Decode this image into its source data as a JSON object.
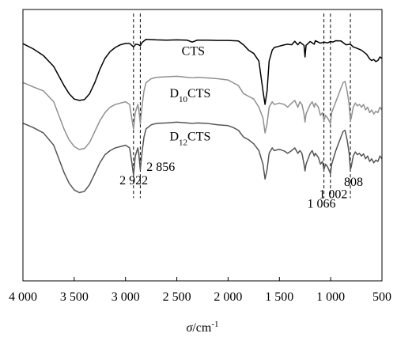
{
  "chart_data": {
    "type": "line",
    "xlabel_symbol": "σ",
    "xlabel_unit": "/cm",
    "xlabel_exp": "-1",
    "xlim": [
      4000,
      500
    ],
    "x_ticks": [
      {
        "value": 4000,
        "label": "4 000"
      },
      {
        "value": 3500,
        "label": "3 500"
      },
      {
        "value": 3000,
        "label": "3 000"
      },
      {
        "value": 2500,
        "label": "2 500"
      },
      {
        "value": 2000,
        "label": "2 000"
      },
      {
        "value": 1500,
        "label": "1 500"
      },
      {
        "value": 1000,
        "label": "1 000"
      },
      {
        "value": 500,
        "label": "500"
      }
    ],
    "series": [
      {
        "name": "CTS",
        "name_parts": {
          "pre": "CTS",
          "sub": "",
          "post": ""
        },
        "color": "#000000",
        "label_x": 2340,
        "label_y": 0.833,
        "points": [
          [
            4000,
            0.874
          ],
          [
            3900,
            0.855
          ],
          [
            3800,
            0.83
          ],
          [
            3700,
            0.79
          ],
          [
            3650,
            0.755
          ],
          [
            3600,
            0.72
          ],
          [
            3550,
            0.69
          ],
          [
            3500,
            0.67
          ],
          [
            3450,
            0.665
          ],
          [
            3400,
            0.668
          ],
          [
            3350,
            0.69
          ],
          [
            3300,
            0.73
          ],
          [
            3250,
            0.78
          ],
          [
            3200,
            0.82
          ],
          [
            3150,
            0.845
          ],
          [
            3100,
            0.86
          ],
          [
            3050,
            0.87
          ],
          [
            3000,
            0.875
          ],
          [
            2960,
            0.875
          ],
          [
            2922,
            0.862
          ],
          [
            2900,
            0.872
          ],
          [
            2870,
            0.87
          ],
          [
            2856,
            0.866
          ],
          [
            2840,
            0.878
          ],
          [
            2800,
            0.89
          ],
          [
            2700,
            0.888
          ],
          [
            2600,
            0.887
          ],
          [
            2500,
            0.888
          ],
          [
            2400,
            0.887
          ],
          [
            2350,
            0.88
          ],
          [
            2300,
            0.887
          ],
          [
            2200,
            0.887
          ],
          [
            2100,
            0.886
          ],
          [
            2000,
            0.886
          ],
          [
            1900,
            0.884
          ],
          [
            1850,
            0.87
          ],
          [
            1800,
            0.85
          ],
          [
            1750,
            0.838
          ],
          [
            1700,
            0.81
          ],
          [
            1660,
            0.7
          ],
          [
            1640,
            0.65
          ],
          [
            1620,
            0.7
          ],
          [
            1600,
            0.81
          ],
          [
            1570,
            0.85
          ],
          [
            1550,
            0.86
          ],
          [
            1500,
            0.865
          ],
          [
            1450,
            0.87
          ],
          [
            1420,
            0.872
          ],
          [
            1380,
            0.87
          ],
          [
            1350,
            0.883
          ],
          [
            1320,
            0.87
          ],
          [
            1300,
            0.88
          ],
          [
            1260,
            0.868
          ],
          [
            1250,
            0.825
          ],
          [
            1240,
            0.868
          ],
          [
            1200,
            0.882
          ],
          [
            1160,
            0.872
          ],
          [
            1150,
            0.885
          ],
          [
            1100,
            0.876
          ],
          [
            1066,
            0.88
          ],
          [
            1030,
            0.877
          ],
          [
            1002,
            0.882
          ],
          [
            980,
            0.88
          ],
          [
            950,
            0.885
          ],
          [
            900,
            0.884
          ],
          [
            850,
            0.87
          ],
          [
            808,
            0.872
          ],
          [
            780,
            0.862
          ],
          [
            750,
            0.858
          ],
          [
            700,
            0.85
          ],
          [
            650,
            0.835
          ],
          [
            620,
            0.818
          ],
          [
            600,
            0.812
          ],
          [
            580,
            0.816
          ],
          [
            560,
            0.808
          ],
          [
            540,
            0.812
          ],
          [
            520,
            0.825
          ],
          [
            500,
            0.82
          ]
        ]
      },
      {
        "name": "D10CTS",
        "name_parts": {
          "pre": "D",
          "sub": "10",
          "post": "CTS"
        },
        "color": "#909090",
        "label_x": 2370,
        "label_y": 0.676,
        "points": [
          [
            4000,
            0.731
          ],
          [
            3900,
            0.715
          ],
          [
            3800,
            0.7
          ],
          [
            3700,
            0.66
          ],
          [
            3650,
            0.61
          ],
          [
            3600,
            0.56
          ],
          [
            3550,
            0.52
          ],
          [
            3500,
            0.495
          ],
          [
            3450,
            0.484
          ],
          [
            3400,
            0.488
          ],
          [
            3350,
            0.51
          ],
          [
            3300,
            0.55
          ],
          [
            3250,
            0.59
          ],
          [
            3200,
            0.62
          ],
          [
            3150,
            0.64
          ],
          [
            3100,
            0.65
          ],
          [
            3050,
            0.655
          ],
          [
            3000,
            0.66
          ],
          [
            2960,
            0.65
          ],
          [
            2940,
            0.6
          ],
          [
            2922,
            0.56
          ],
          [
            2905,
            0.62
          ],
          [
            2880,
            0.65
          ],
          [
            2870,
            0.63
          ],
          [
            2856,
            0.58
          ],
          [
            2840,
            0.64
          ],
          [
            2820,
            0.7
          ],
          [
            2800,
            0.73
          ],
          [
            2750,
            0.745
          ],
          [
            2700,
            0.75
          ],
          [
            2600,
            0.752
          ],
          [
            2500,
            0.754
          ],
          [
            2400,
            0.75
          ],
          [
            2350,
            0.748
          ],
          [
            2300,
            0.75
          ],
          [
            2200,
            0.748
          ],
          [
            2100,
            0.745
          ],
          [
            2000,
            0.74
          ],
          [
            1950,
            0.73
          ],
          [
            1900,
            0.72
          ],
          [
            1850,
            0.69
          ],
          [
            1800,
            0.68
          ],
          [
            1750,
            0.67
          ],
          [
            1700,
            0.64
          ],
          [
            1660,
            0.6
          ],
          [
            1640,
            0.545
          ],
          [
            1620,
            0.58
          ],
          [
            1600,
            0.64
          ],
          [
            1570,
            0.66
          ],
          [
            1550,
            0.65
          ],
          [
            1500,
            0.655
          ],
          [
            1450,
            0.65
          ],
          [
            1420,
            0.64
          ],
          [
            1380,
            0.655
          ],
          [
            1350,
            0.665
          ],
          [
            1320,
            0.64
          ],
          [
            1300,
            0.66
          ],
          [
            1280,
            0.65
          ],
          [
            1260,
            0.615
          ],
          [
            1250,
            0.585
          ],
          [
            1240,
            0.615
          ],
          [
            1200,
            0.65
          ],
          [
            1180,
            0.66
          ],
          [
            1160,
            0.64
          ],
          [
            1150,
            0.655
          ],
          [
            1120,
            0.64
          ],
          [
            1100,
            0.61
          ],
          [
            1080,
            0.62
          ],
          [
            1066,
            0.59
          ],
          [
            1050,
            0.61
          ],
          [
            1030,
            0.6
          ],
          [
            1002,
            0.58
          ],
          [
            990,
            0.62
          ],
          [
            950,
            0.66
          ],
          [
            920,
            0.69
          ],
          [
            900,
            0.71
          ],
          [
            880,
            0.73
          ],
          [
            860,
            0.735
          ],
          [
            840,
            0.7
          ],
          [
            820,
            0.65
          ],
          [
            808,
            0.59
          ],
          [
            800,
            0.6
          ],
          [
            780,
            0.64
          ],
          [
            760,
            0.655
          ],
          [
            740,
            0.645
          ],
          [
            720,
            0.65
          ],
          [
            700,
            0.64
          ],
          [
            680,
            0.65
          ],
          [
            660,
            0.63
          ],
          [
            640,
            0.64
          ],
          [
            620,
            0.62
          ],
          [
            600,
            0.63
          ],
          [
            580,
            0.615
          ],
          [
            560,
            0.625
          ],
          [
            540,
            0.62
          ],
          [
            520,
            0.64
          ],
          [
            500,
            0.63
          ]
        ]
      },
      {
        "name": "D12CTS",
        "name_parts": {
          "pre": "D",
          "sub": "12",
          "post": "CTS"
        },
        "color": "#555555",
        "label_x": 2370,
        "label_y": 0.518,
        "points": [
          [
            4000,
            0.581
          ],
          [
            3900,
            0.565
          ],
          [
            3800,
            0.545
          ],
          [
            3700,
            0.5
          ],
          [
            3650,
            0.45
          ],
          [
            3600,
            0.4
          ],
          [
            3550,
            0.36
          ],
          [
            3500,
            0.335
          ],
          [
            3450,
            0.325
          ],
          [
            3400,
            0.33
          ],
          [
            3350,
            0.355
          ],
          [
            3300,
            0.395
          ],
          [
            3250,
            0.435
          ],
          [
            3200,
            0.465
          ],
          [
            3150,
            0.48
          ],
          [
            3100,
            0.49
          ],
          [
            3050,
            0.495
          ],
          [
            3000,
            0.5
          ],
          [
            2960,
            0.49
          ],
          [
            2940,
            0.44
          ],
          [
            2922,
            0.39
          ],
          [
            2905,
            0.46
          ],
          [
            2880,
            0.49
          ],
          [
            2870,
            0.465
          ],
          [
            2856,
            0.41
          ],
          [
            2840,
            0.47
          ],
          [
            2820,
            0.53
          ],
          [
            2800,
            0.56
          ],
          [
            2750,
            0.575
          ],
          [
            2700,
            0.58
          ],
          [
            2600,
            0.582
          ],
          [
            2500,
            0.585
          ],
          [
            2400,
            0.582
          ],
          [
            2350,
            0.58
          ],
          [
            2300,
            0.582
          ],
          [
            2200,
            0.58
          ],
          [
            2100,
            0.575
          ],
          [
            2000,
            0.572
          ],
          [
            1950,
            0.565
          ],
          [
            1900,
            0.555
          ],
          [
            1850,
            0.53
          ],
          [
            1800,
            0.52
          ],
          [
            1750,
            0.505
          ],
          [
            1700,
            0.48
          ],
          [
            1660,
            0.43
          ],
          [
            1640,
            0.375
          ],
          [
            1620,
            0.41
          ],
          [
            1600,
            0.47
          ],
          [
            1570,
            0.49
          ],
          [
            1550,
            0.48
          ],
          [
            1500,
            0.485
          ],
          [
            1450,
            0.478
          ],
          [
            1420,
            0.47
          ],
          [
            1380,
            0.48
          ],
          [
            1350,
            0.49
          ],
          [
            1320,
            0.47
          ],
          [
            1300,
            0.48
          ],
          [
            1280,
            0.47
          ],
          [
            1260,
            0.43
          ],
          [
            1250,
            0.405
          ],
          [
            1240,
            0.43
          ],
          [
            1200,
            0.47
          ],
          [
            1180,
            0.48
          ],
          [
            1160,
            0.46
          ],
          [
            1150,
            0.47
          ],
          [
            1120,
            0.455
          ],
          [
            1100,
            0.43
          ],
          [
            1080,
            0.44
          ],
          [
            1066,
            0.41
          ],
          [
            1050,
            0.43
          ],
          [
            1030,
            0.42
          ],
          [
            1002,
            0.395
          ],
          [
            990,
            0.43
          ],
          [
            950,
            0.48
          ],
          [
            920,
            0.51
          ],
          [
            900,
            0.53
          ],
          [
            880,
            0.55
          ],
          [
            860,
            0.555
          ],
          [
            840,
            0.52
          ],
          [
            820,
            0.47
          ],
          [
            808,
            0.41
          ],
          [
            800,
            0.42
          ],
          [
            780,
            0.46
          ],
          [
            760,
            0.475
          ],
          [
            740,
            0.465
          ],
          [
            720,
            0.47
          ],
          [
            700,
            0.46
          ],
          [
            680,
            0.468
          ],
          [
            660,
            0.45
          ],
          [
            640,
            0.46
          ],
          [
            620,
            0.44
          ],
          [
            600,
            0.45
          ],
          [
            580,
            0.435
          ],
          [
            560,
            0.445
          ],
          [
            540,
            0.44
          ],
          [
            520,
            0.46
          ],
          [
            500,
            0.45
          ]
        ]
      }
    ],
    "markers": [
      {
        "x": 2922,
        "label": "2 922",
        "label_x": 2920,
        "label_y": 0.355,
        "anchor": "middle"
      },
      {
        "x": 2856,
        "label": "2 856",
        "label_x": 2795,
        "label_y": 0.405,
        "anchor": "start"
      },
      {
        "x": 1066,
        "label": "1 066",
        "label_x": 1090,
        "label_y": 0.27,
        "anchor": "middle"
      },
      {
        "x": 1002,
        "label": "1 002",
        "label_x": 975,
        "label_y": 0.305,
        "anchor": "middle"
      },
      {
        "x": 808,
        "label": "808",
        "label_x": 778,
        "label_y": 0.35,
        "anchor": "middle"
      }
    ],
    "marker_ylim": [
      0.305,
      0.985
    ],
    "grid": false,
    "legend": "none"
  }
}
